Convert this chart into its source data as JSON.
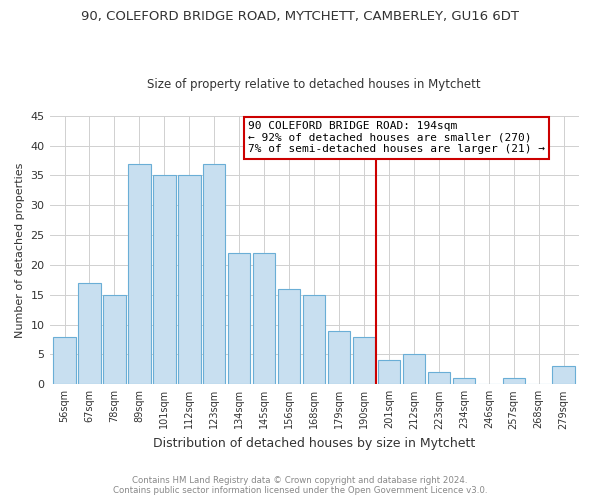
{
  "title_line1": "90, COLEFORD BRIDGE ROAD, MYTCHETT, CAMBERLEY, GU16 6DT",
  "title_line2": "Size of property relative to detached houses in Mytchett",
  "xlabel": "Distribution of detached houses by size in Mytchett",
  "ylabel": "Number of detached properties",
  "bar_labels": [
    "56sqm",
    "67sqm",
    "78sqm",
    "89sqm",
    "101sqm",
    "112sqm",
    "123sqm",
    "134sqm",
    "145sqm",
    "156sqm",
    "168sqm",
    "179sqm",
    "190sqm",
    "201sqm",
    "212sqm",
    "223sqm",
    "234sqm",
    "246sqm",
    "257sqm",
    "268sqm",
    "279sqm"
  ],
  "bar_values": [
    8,
    17,
    15,
    37,
    35,
    35,
    37,
    22,
    22,
    16,
    15,
    9,
    8,
    4,
    5,
    2,
    1,
    0,
    1,
    0,
    3
  ],
  "bar_color": "#c8dff0",
  "bar_edge_color": "#6aaed6",
  "vline_x": 12.5,
  "vline_color": "#cc0000",
  "annotation_line1": "90 COLEFORD BRIDGE ROAD: 194sqm",
  "annotation_line2": "← 92% of detached houses are smaller (270)",
  "annotation_line3": "7% of semi-detached houses are larger (21) →",
  "annotation_box_color": "#ffffff",
  "annotation_box_edge": "#cc0000",
  "ylim": [
    0,
    45
  ],
  "yticks": [
    0,
    5,
    10,
    15,
    20,
    25,
    30,
    35,
    40,
    45
  ],
  "footer_line1": "Contains HM Land Registry data © Crown copyright and database right 2024.",
  "footer_line2": "Contains public sector information licensed under the Open Government Licence v3.0.",
  "background_color": "#ffffff",
  "grid_color": "#d0d0d0"
}
